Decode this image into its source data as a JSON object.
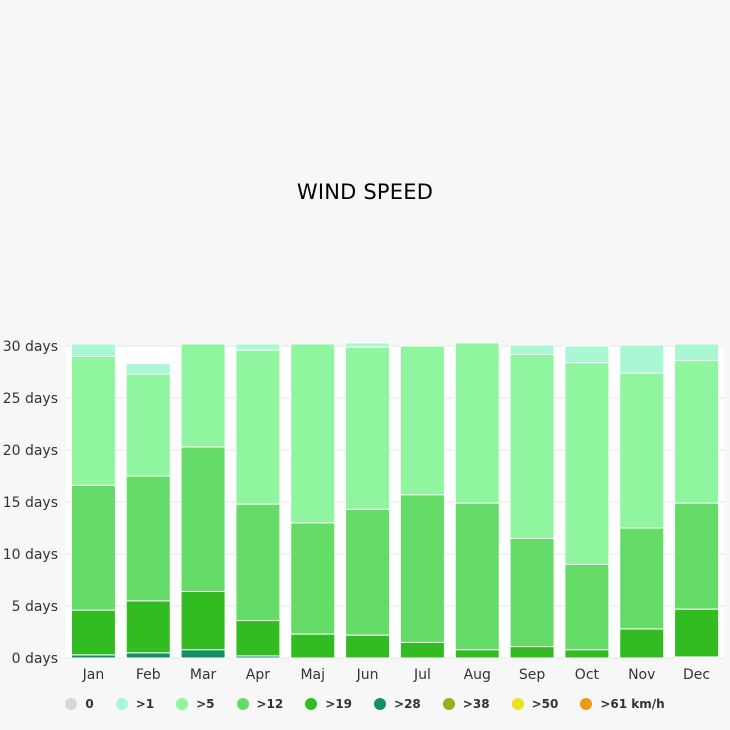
{
  "chart_data": {
    "type": "bar",
    "stacked": true,
    "title": "WIND SPEED",
    "ylim": [
      0,
      30
    ],
    "y_ticks": [
      0,
      5,
      10,
      15,
      20,
      25,
      30
    ],
    "y_tick_suffix": " days",
    "grid": true,
    "legend_position": "bottom",
    "categories": [
      "Jan",
      "Feb",
      "Mar",
      "Apr",
      "Maj",
      "Jun",
      "Jul",
      "Aug",
      "Sep",
      "Oct",
      "Nov",
      "Dec"
    ],
    "series": [
      {
        "name": "0",
        "color": "#dcd7d7",
        "values": [
          0,
          0,
          0,
          0,
          0,
          0,
          0,
          0,
          0,
          0,
          0,
          0
        ]
      },
      {
        "name": ">1",
        "color": "#aaf7d4",
        "values": [
          1.2,
          1.0,
          0,
          0.6,
          0,
          0.4,
          0,
          0,
          0.9,
          1.6,
          2.7,
          1.6
        ]
      },
      {
        "name": ">5",
        "color": "#8ff59f",
        "values": [
          12.4,
          9.8,
          9.9,
          14.8,
          17.2,
          15.6,
          14.3,
          15.4,
          17.7,
          19.4,
          14.9,
          13.7
        ]
      },
      {
        "name": ">12",
        "color": "#65dc68",
        "values": [
          12.0,
          12.0,
          13.9,
          11.2,
          10.7,
          12.1,
          14.2,
          14.1,
          10.4,
          8.2,
          9.7,
          10.2
        ]
      },
      {
        "name": ">19",
        "color": "#33bc21",
        "values": [
          4.3,
          5.0,
          5.6,
          3.4,
          2.3,
          2.2,
          1.5,
          0.8,
          1.1,
          0.8,
          2.8,
          4.6
        ]
      },
      {
        "name": ">28",
        "color": "#129061",
        "values": [
          0.3,
          0.5,
          0.8,
          0.2,
          0,
          0,
          0,
          0,
          0,
          0,
          0,
          0.1
        ]
      },
      {
        "name": ">38",
        "color": "#90b319",
        "values": [
          0,
          0,
          0,
          0,
          0,
          0,
          0,
          0,
          0,
          0,
          0,
          0
        ]
      },
      {
        "name": ">50",
        "color": "#e7e41c",
        "values": [
          0,
          0,
          0,
          0,
          0,
          0,
          0,
          0,
          0,
          0,
          0,
          0
        ]
      },
      {
        "name": ">61 km/h",
        "color": "#ec9a13",
        "values": [
          0,
          0,
          0,
          0,
          0,
          0,
          0,
          0,
          0,
          0,
          0,
          0
        ]
      }
    ]
  }
}
